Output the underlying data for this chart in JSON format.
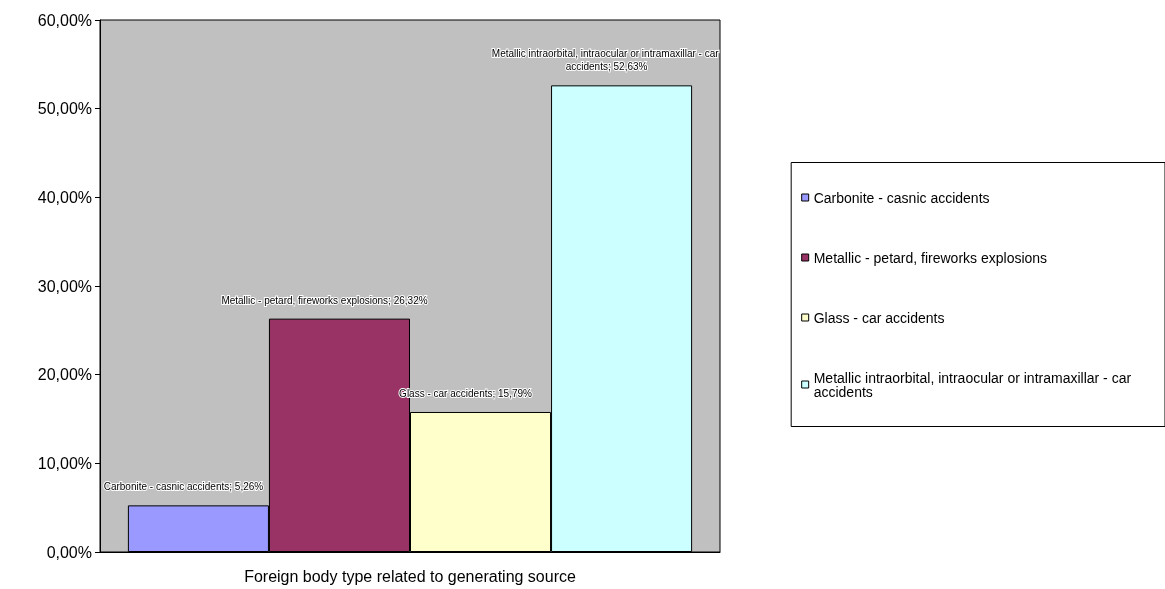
{
  "chart_data": {
    "type": "bar",
    "xlabel": "Foreign body type related to generating source",
    "categories": [
      null
    ],
    "series": [
      {
        "name": "Carbonite - casnic accidents",
        "color": "#9999ff",
        "values": [
          5.26
        ],
        "value_labels": [
          "Carbonite - casnic accidents; 5,26%"
        ]
      },
      {
        "name": "Metallic - petard, fireworks explosions",
        "color": "#993366",
        "values": [
          26.32
        ],
        "value_labels": [
          "Metallic - petard, fireworks explosions; 26,32%"
        ]
      },
      {
        "name": "Glass - car accidents",
        "color": "#ffffcc",
        "values": [
          15.79
        ],
        "value_labels": [
          "Glass - car accidents; 15,79%"
        ]
      },
      {
        "name": "Metallic intraorbital, intraocular or intramaxillar - car accidents",
        "color": "#ccffff",
        "values": [
          52.63
        ],
        "value_labels": [
          "Metallic intraorbital, intraocular or intramaxillar - car accidents; 52,63%"
        ]
      }
    ],
    "ylim": [
      0,
      60
    ],
    "yticks": [
      {
        "value": 0,
        "label": "0,00%"
      },
      {
        "value": 10,
        "label": "10,00%"
      },
      {
        "value": 20,
        "label": "20,00%"
      },
      {
        "value": 30,
        "label": "30,00%"
      },
      {
        "value": 40,
        "label": "40,00%"
      },
      {
        "value": 50,
        "label": "50,00%"
      },
      {
        "value": 60,
        "label": "60,00%"
      }
    ],
    "grid": false,
    "legend": "right"
  }
}
